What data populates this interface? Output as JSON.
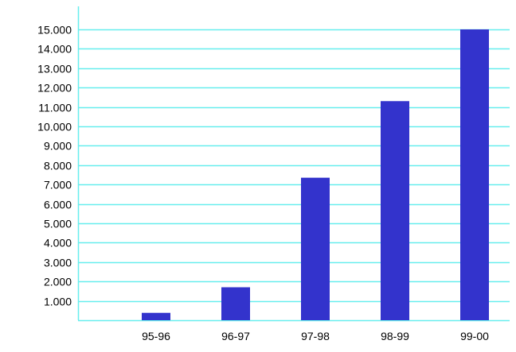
{
  "colors": {
    "background": "#ffffff",
    "grid": "#66eeee",
    "axis": "#66eeee",
    "bar": "#3333cc"
  },
  "chart_data": {
    "type": "bar",
    "title": "",
    "xlabel": "",
    "ylabel": "",
    "grid": true,
    "legend": "none",
    "categories": [
      "95-96",
      "96-97",
      "97-98",
      "98-99",
      "99-00"
    ],
    "values": [
      380,
      1700,
      7350,
      11300,
      15000
    ],
    "ylim": [
      0,
      15500
    ],
    "yticks": [
      1000,
      2000,
      3000,
      4000,
      5000,
      6000,
      7000,
      8000,
      9000,
      10000,
      11000,
      12000,
      13000,
      14000,
      15000
    ],
    "ytick_labels": [
      "1.000",
      "2.000",
      "3.000",
      "4.000",
      "5.000",
      "6.000",
      "7.000",
      "8.000",
      "9.000",
      "10.000",
      "11.000",
      "12.000",
      "13.000",
      "14.000",
      "15.000"
    ]
  }
}
